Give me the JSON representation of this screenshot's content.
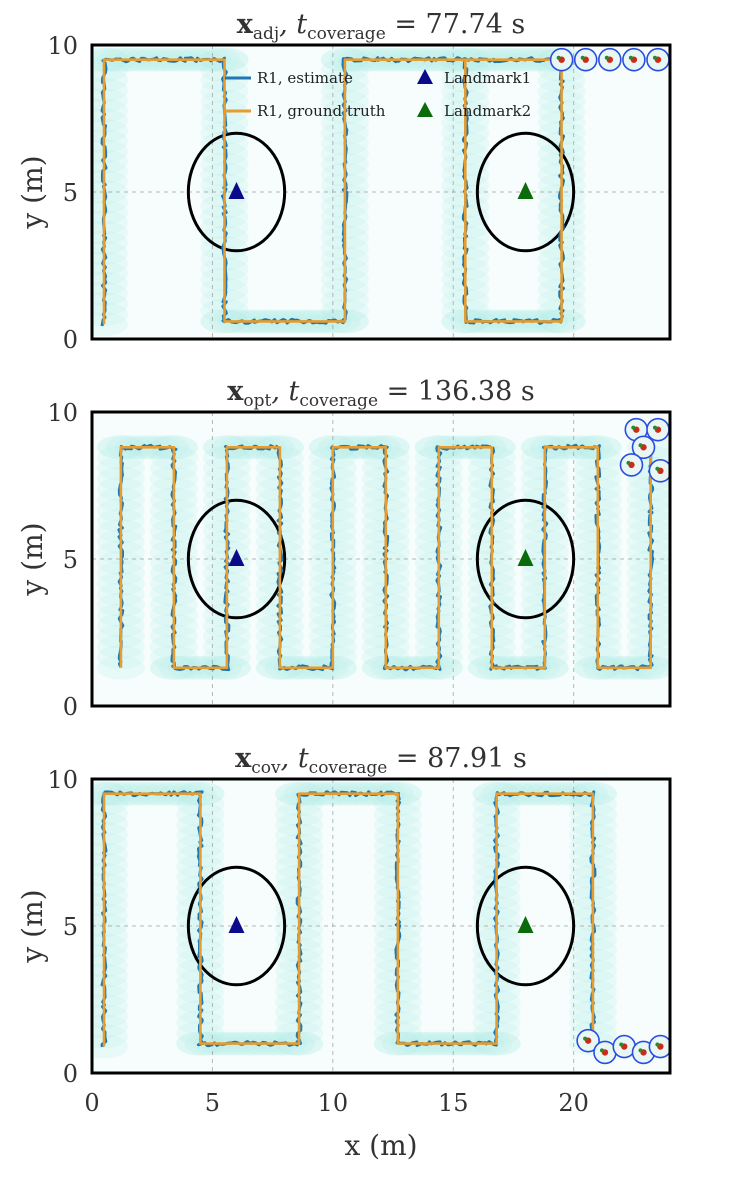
{
  "figure": {
    "xlabel": "x (m)",
    "ylabel": "y (m)",
    "xlim": [
      0,
      24
    ],
    "ylim": [
      0,
      10
    ],
    "xticks": [
      0,
      5,
      10,
      15,
      20
    ],
    "yticks": [
      0,
      5,
      10
    ]
  },
  "legend": {
    "placement": "top-center of first panel",
    "entries": [
      {
        "label": "R1, estimate",
        "color": "#1f77b4",
        "kind": "line"
      },
      {
        "label": "R1, ground truth",
        "color": "#e69c2e",
        "kind": "line"
      },
      {
        "label": "Landmark1",
        "color": "#0a0a8a",
        "kind": "triangle"
      },
      {
        "label": "Landmark2",
        "color": "#0a6b0a",
        "kind": "triangle"
      }
    ]
  },
  "colors": {
    "estimate": "#1f77b4",
    "ground_truth": "#e69c2e",
    "coverage": "#7fe0d8",
    "landmark1": "#0a0a8a",
    "landmark2": "#0a6b0a",
    "robot_circle": "#2a4de0"
  },
  "landmarks": [
    {
      "name": "Landmark1",
      "x": 6.0,
      "y": 5.0,
      "radius": 2.0
    },
    {
      "name": "Landmark2",
      "x": 18.0,
      "y": 5.0,
      "radius": 2.0
    }
  ],
  "chart_data": [
    {
      "type": "line",
      "title_main": "x",
      "title_sub": "adj",
      "title_rest": ", t",
      "title_rest_sub": "coverage",
      "title_value": " = 77.74 s",
      "grid": true,
      "legend": true,
      "path": [
        [
          0.5,
          0.5
        ],
        [
          0.5,
          9.5
        ],
        [
          5.5,
          9.5
        ],
        [
          5.5,
          0.6
        ],
        [
          10.5,
          0.6
        ],
        [
          10.5,
          9.5
        ],
        [
          19.5,
          9.5
        ],
        [
          19.5,
          0.6
        ],
        [
          15.5,
          0.6
        ],
        [
          15.5,
          9.5
        ]
      ],
      "robots": [
        [
          19.5,
          9.5
        ],
        [
          20.5,
          9.5
        ],
        [
          21.5,
          9.5
        ],
        [
          22.5,
          9.5
        ],
        [
          23.5,
          9.5
        ]
      ]
    },
    {
      "type": "line",
      "title_main": "x",
      "title_sub": "opt",
      "title_rest": ", t",
      "title_rest_sub": "coverage",
      "title_value": " = 136.38 s",
      "grid": true,
      "legend": false,
      "path": [
        [
          1.2,
          1.3
        ],
        [
          1.2,
          8.8
        ],
        [
          3.4,
          8.8
        ],
        [
          3.4,
          1.3
        ],
        [
          5.6,
          1.3
        ],
        [
          5.6,
          8.8
        ],
        [
          7.8,
          8.8
        ],
        [
          7.8,
          1.3
        ],
        [
          10.0,
          1.3
        ],
        [
          10.0,
          8.8
        ],
        [
          12.2,
          8.8
        ],
        [
          12.2,
          1.3
        ],
        [
          14.4,
          1.3
        ],
        [
          14.4,
          8.8
        ],
        [
          16.6,
          8.8
        ],
        [
          16.6,
          1.3
        ],
        [
          18.8,
          1.3
        ],
        [
          18.8,
          8.8
        ],
        [
          21.0,
          8.8
        ],
        [
          21.0,
          1.3
        ],
        [
          23.2,
          1.3
        ],
        [
          23.2,
          8.8
        ]
      ],
      "robots": [
        [
          22.6,
          9.4
        ],
        [
          23.5,
          9.4
        ],
        [
          22.9,
          8.8
        ],
        [
          22.4,
          8.2
        ],
        [
          23.6,
          8.0
        ]
      ]
    },
    {
      "type": "line",
      "title_main": "x",
      "title_sub": "cov",
      "title_rest": ", t",
      "title_rest_sub": "coverage",
      "title_value": " = 87.91 s",
      "grid": true,
      "legend": false,
      "path": [
        [
          0.5,
          0.9
        ],
        [
          0.5,
          9.5
        ],
        [
          4.5,
          9.5
        ],
        [
          4.5,
          1.0
        ],
        [
          8.6,
          1.0
        ],
        [
          8.6,
          9.5
        ],
        [
          12.7,
          9.5
        ],
        [
          12.7,
          1.0
        ],
        [
          16.8,
          1.0
        ],
        [
          16.8,
          9.5
        ],
        [
          20.8,
          9.5
        ],
        [
          20.8,
          1.0
        ]
      ],
      "robots": [
        [
          20.6,
          1.1
        ],
        [
          21.3,
          0.7
        ],
        [
          22.1,
          0.9
        ],
        [
          22.9,
          0.7
        ],
        [
          23.6,
          0.9
        ]
      ]
    }
  ]
}
